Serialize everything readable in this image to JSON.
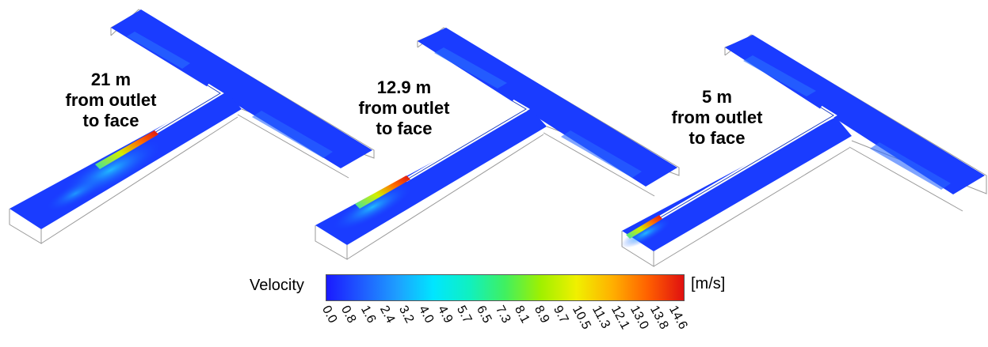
{
  "panels": [
    {
      "lines": [
        "21 m",
        "from outlet",
        "to face"
      ]
    },
    {
      "lines": [
        "12.9 m",
        "from outlet",
        "to face"
      ]
    },
    {
      "lines": [
        "5 m",
        "from outlet",
        "to face"
      ]
    }
  ],
  "legend": {
    "title": "Velocity",
    "unit": "[m/s]",
    "ticks": [
      "0.0",
      "0.8",
      "1.6",
      "2.4",
      "3.2",
      "4.0",
      "4.9",
      "5.7",
      "6.5",
      "7.3",
      "8.1",
      "8.9",
      "9.7",
      "10.5",
      "11.3",
      "12.1",
      "13.0",
      "13.8",
      "14.6"
    ],
    "colors": [
      "#1a1aff",
      "#1f5cff",
      "#1ea0ff",
      "#00e6ff",
      "#10f0c0",
      "#40f060",
      "#a0f000",
      "#f0f000",
      "#ffb000",
      "#ff6000",
      "#e01010"
    ]
  }
}
